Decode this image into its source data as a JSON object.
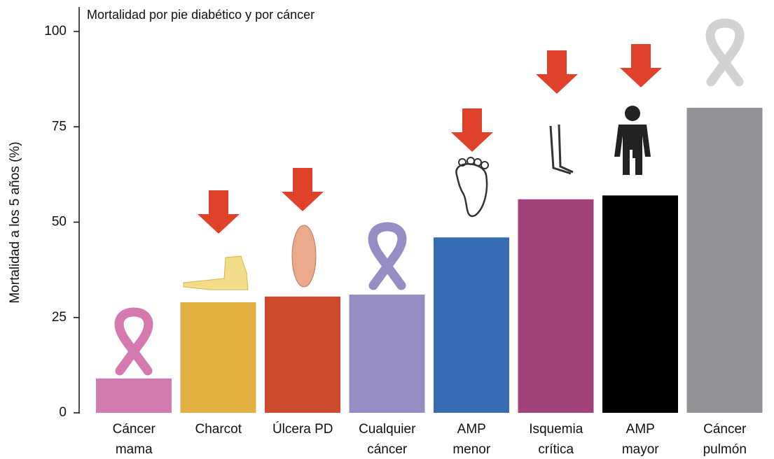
{
  "chart_data": {
    "type": "bar",
    "title": "Mortalidad por pie diabético y por cáncer",
    "y_label": "Mortalidad a los 5 años (%)",
    "categories": [
      [
        "Cáncer",
        "mama"
      ],
      [
        "Charcot"
      ],
      [
        "Úlcera PD"
      ],
      [
        "Cualquier",
        "cáncer"
      ],
      [
        "AMP",
        "menor"
      ],
      [
        "Isquemia",
        "crítica"
      ],
      [
        "AMP",
        "mayor"
      ],
      [
        "Cáncer",
        "pulmón"
      ]
    ],
    "values": [
      9,
      29,
      30.5,
      31,
      46,
      56,
      57,
      80
    ],
    "colors": [
      "#d57aae",
      "#e2b042",
      "#cf4a2c",
      "#958dc4",
      "#3a6bb5",
      "#a1427a",
      "#000000",
      "#949498"
    ],
    "ylim": [
      0,
      100
    ],
    "yticks": [
      0,
      25,
      50,
      75,
      100
    ],
    "grid": false
  }
}
